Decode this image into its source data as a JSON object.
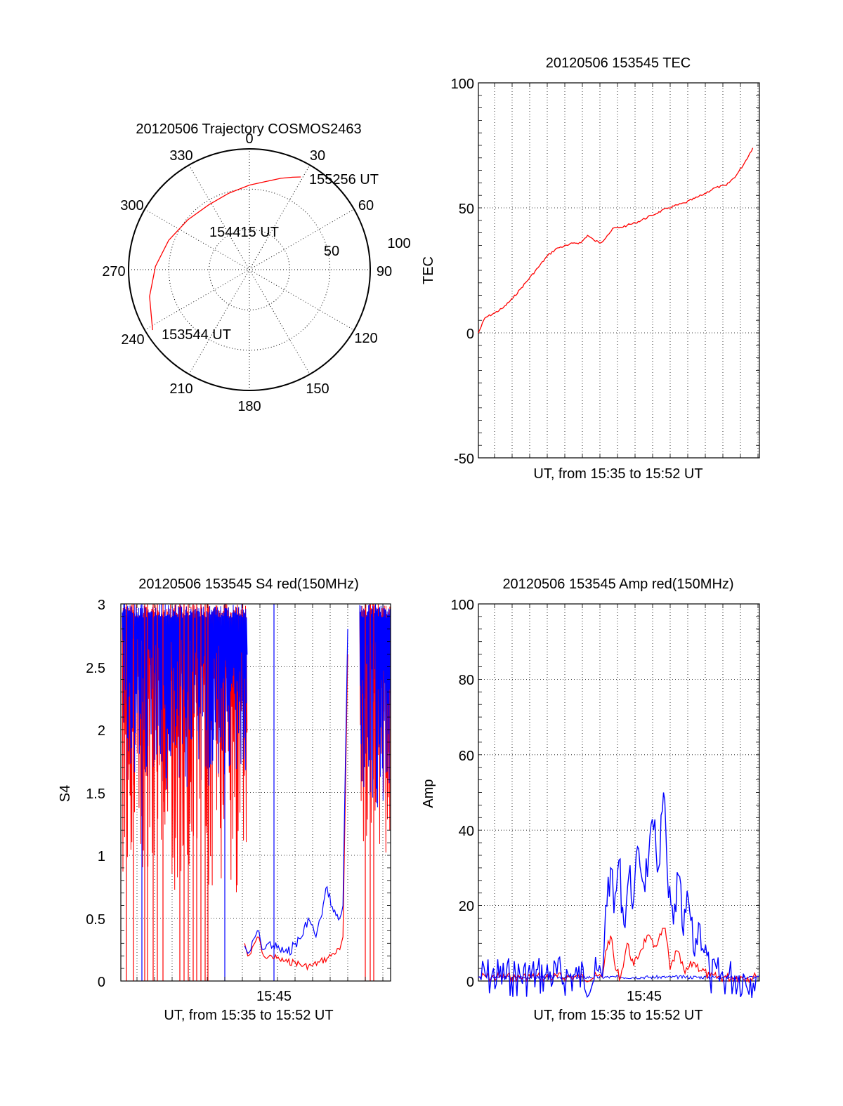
{
  "chart_data": [
    {
      "id": "polar",
      "type": "scatter",
      "title": "20120506 Trajectory COSMOS2463",
      "coordinate_system": "polar",
      "azimuth_labels": [
        "0",
        "30",
        "60",
        "90",
        "120",
        "150",
        "180",
        "210",
        "240",
        "270",
        "300",
        "330"
      ],
      "radial_labels": [
        "50",
        "100"
      ],
      "grid": true,
      "series": [
        {
          "color": "#ff0000",
          "points": [
            {
              "az": 238,
              "el": 5
            },
            {
              "az": 255,
              "el": 13
            },
            {
              "az": 272,
              "el": 20
            },
            {
              "az": 290,
              "el": 26
            },
            {
              "az": 309,
              "el": 31
            },
            {
              "az": 328,
              "el": 33
            },
            {
              "az": 345,
              "el": 31
            },
            {
              "az": 0,
              "el": 27
            },
            {
              "az": 11,
              "el": 23
            },
            {
              "az": 19,
              "el": 18
            },
            {
              "az": 25,
              "el": 14
            },
            {
              "az": 29,
              "el": 11
            }
          ]
        }
      ],
      "annotations": [
        {
          "text": "153544 UT",
          "az": 238,
          "el": 5
        },
        {
          "text": "154415 UT",
          "az": 0,
          "el": 55
        },
        {
          "text": "155256 UT",
          "az": 29,
          "el": 11
        }
      ]
    },
    {
      "id": "tec",
      "type": "line",
      "title": "20120506 153545 TEC",
      "xlabel": "UT, from 15:35 to 15:52 UT",
      "ylabel": "TEC",
      "ylim": [
        -50,
        100
      ],
      "yticks": [
        "100",
        "50",
        "0",
        "-50"
      ],
      "grid": true,
      "series": [
        {
          "color": "#ff0000",
          "x": [
            0,
            0.4,
            1.0,
            1.5,
            2.1,
            2.6,
            3.1,
            3.6,
            4.2,
            4.8,
            5.4,
            5.8,
            6.2,
            6.6,
            7.0,
            7.4,
            7.8,
            8.2,
            8.5,
            9.0,
            9.5,
            10.5,
            11.5,
            12.5,
            13.5,
            14.3,
            15.0,
            15.6,
            16.1,
            16.6
          ],
          "values": [
            0,
            6,
            8,
            10,
            14,
            18,
            22,
            26,
            31,
            34,
            35,
            36,
            36,
            39,
            37,
            36,
            39,
            42,
            42,
            43,
            44,
            47,
            50,
            52,
            55,
            58,
            59,
            63,
            68,
            74
          ]
        }
      ]
    },
    {
      "id": "s4",
      "type": "line",
      "title": "20120506 153545 S4 red(150MHz)",
      "xlabel": "UT, from 15:35 to 15:52 UT",
      "ylabel": "S4",
      "ylim": [
        0,
        3
      ],
      "yticks": [
        "3",
        "2.5",
        "2",
        "1.5",
        "1",
        "0.5",
        "0"
      ],
      "xticks": [
        "15:45"
      ],
      "grid": true,
      "series": [
        {
          "color": "#ff0000",
          "x": [
            7.8,
            8.0,
            8.2,
            8.6,
            8.8,
            9.0,
            9.2,
            9.5,
            10.0,
            10.5,
            11.0,
            11.5,
            12.0,
            12.5,
            13.0,
            13.4,
            13.8,
            14.0,
            14.3
          ],
          "values": [
            0.3,
            0.2,
            0.22,
            0.35,
            0.3,
            0.2,
            0.18,
            0.2,
            0.17,
            0.15,
            0.15,
            0.12,
            0.12,
            0.15,
            0.18,
            0.22,
            0.25,
            0.35,
            2.6
          ]
        },
        {
          "color": "#0000ff",
          "x": [
            7.8,
            8.0,
            8.2,
            8.6,
            8.8,
            9.0,
            9.3,
            9.6,
            10.0,
            10.5,
            11.0,
            11.4,
            11.8,
            12.0,
            12.3,
            12.6,
            13.0,
            13.4,
            13.8,
            14.0,
            14.3
          ],
          "values": [
            0.28,
            0.22,
            0.25,
            0.4,
            0.32,
            0.25,
            0.3,
            0.28,
            0.25,
            0.22,
            0.3,
            0.35,
            0.5,
            0.45,
            0.35,
            0.5,
            0.75,
            0.55,
            0.5,
            0.6,
            2.8
          ]
        }
      ]
    },
    {
      "id": "amp",
      "type": "line",
      "title": "20120506 153545 Amp red(150MHz)",
      "xlabel": "UT, from 15:35 to 15:52 UT",
      "ylabel": "Amp",
      "ylim": [
        0,
        100
      ],
      "yticks": [
        "100",
        "80",
        "60",
        "40",
        "20",
        "0"
      ],
      "xticks": [
        "15:45"
      ],
      "grid": true,
      "series": [
        {
          "color": "#ff0000",
          "x": [
            0,
            4,
            7.5,
            7.7,
            8.0,
            8.3,
            8.6,
            9.0,
            9.4,
            9.8,
            10.2,
            10.6,
            10.9,
            11.3,
            11.6,
            12.0,
            12.5,
            13.0,
            14.0,
            15.0,
            16.8
          ],
          "values": [
            1,
            1,
            1,
            8,
            12,
            3,
            1,
            10,
            4,
            8,
            12,
            9,
            11,
            14,
            3,
            8,
            2,
            5,
            1,
            1,
            1
          ]
        },
        {
          "color": "#0000ff",
          "x": [
            0,
            2,
            4,
            6,
            7.5,
            7.7,
            8.0,
            8.2,
            8.5,
            8.8,
            9.1,
            9.4,
            9.7,
            10.0,
            10.3,
            10.6,
            10.9,
            11.2,
            11.5,
            11.8,
            12.1,
            12.4,
            12.7,
            13.0,
            13.4,
            14.0,
            15.0,
            16.8
          ],
          "values": [
            1,
            1,
            1.5,
            1,
            1,
            20,
            30,
            18,
            32,
            15,
            28,
            22,
            35,
            26,
            33,
            40,
            30,
            50,
            22,
            15,
            28,
            12,
            22,
            8,
            15,
            1,
            1,
            1
          ]
        }
      ]
    }
  ]
}
